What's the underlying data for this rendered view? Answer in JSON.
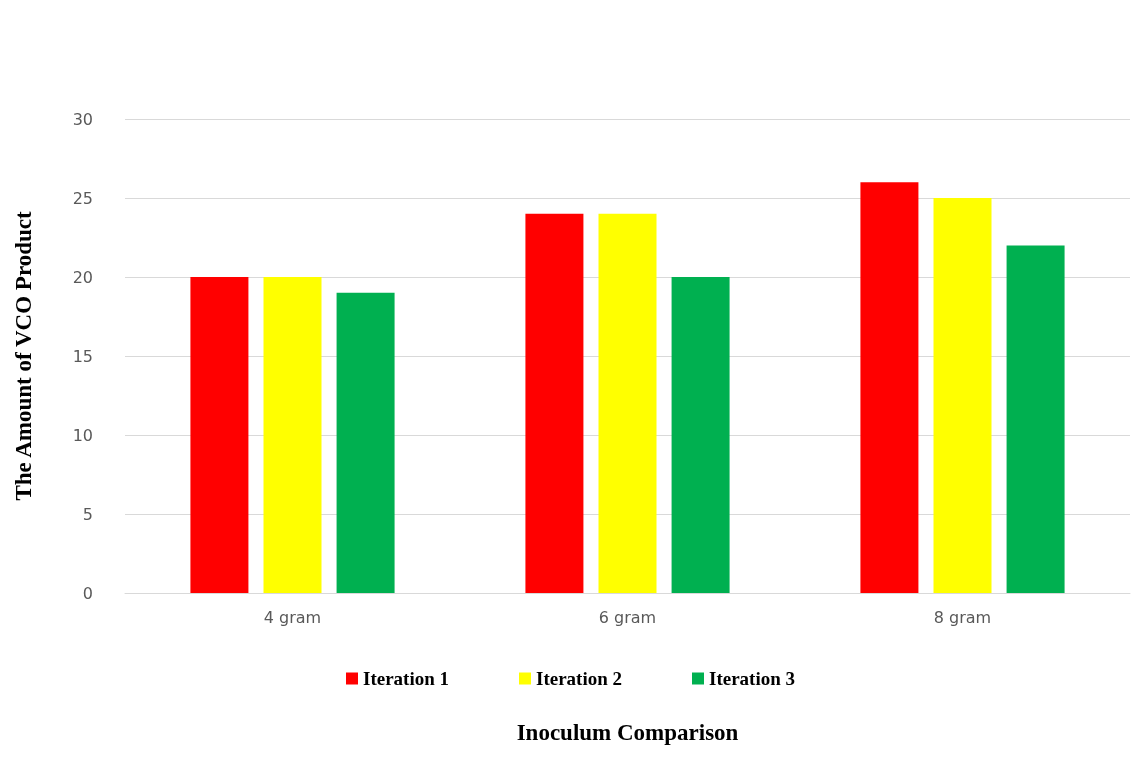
{
  "chart_data": {
    "type": "bar",
    "xlabel": "Inoculum Comparison",
    "ylabel": "The Amount of VCO Product",
    "categories": [
      "4 gram",
      "6 gram",
      "8 gram"
    ],
    "series": [
      {
        "name": "Iteration 1",
        "color": "#ff0000",
        "values": [
          20,
          24,
          26
        ]
      },
      {
        "name": "Iteration 2",
        "color": "#ffff00",
        "values": [
          20,
          24,
          25
        ]
      },
      {
        "name": "Iteration 3",
        "color": "#00b050",
        "values": [
          19,
          20,
          22
        ]
      }
    ],
    "ylim": [
      0,
      30
    ],
    "yticks": [
      0,
      5,
      10,
      15,
      20,
      25,
      30
    ],
    "grid": "y",
    "legend": "bottom"
  }
}
